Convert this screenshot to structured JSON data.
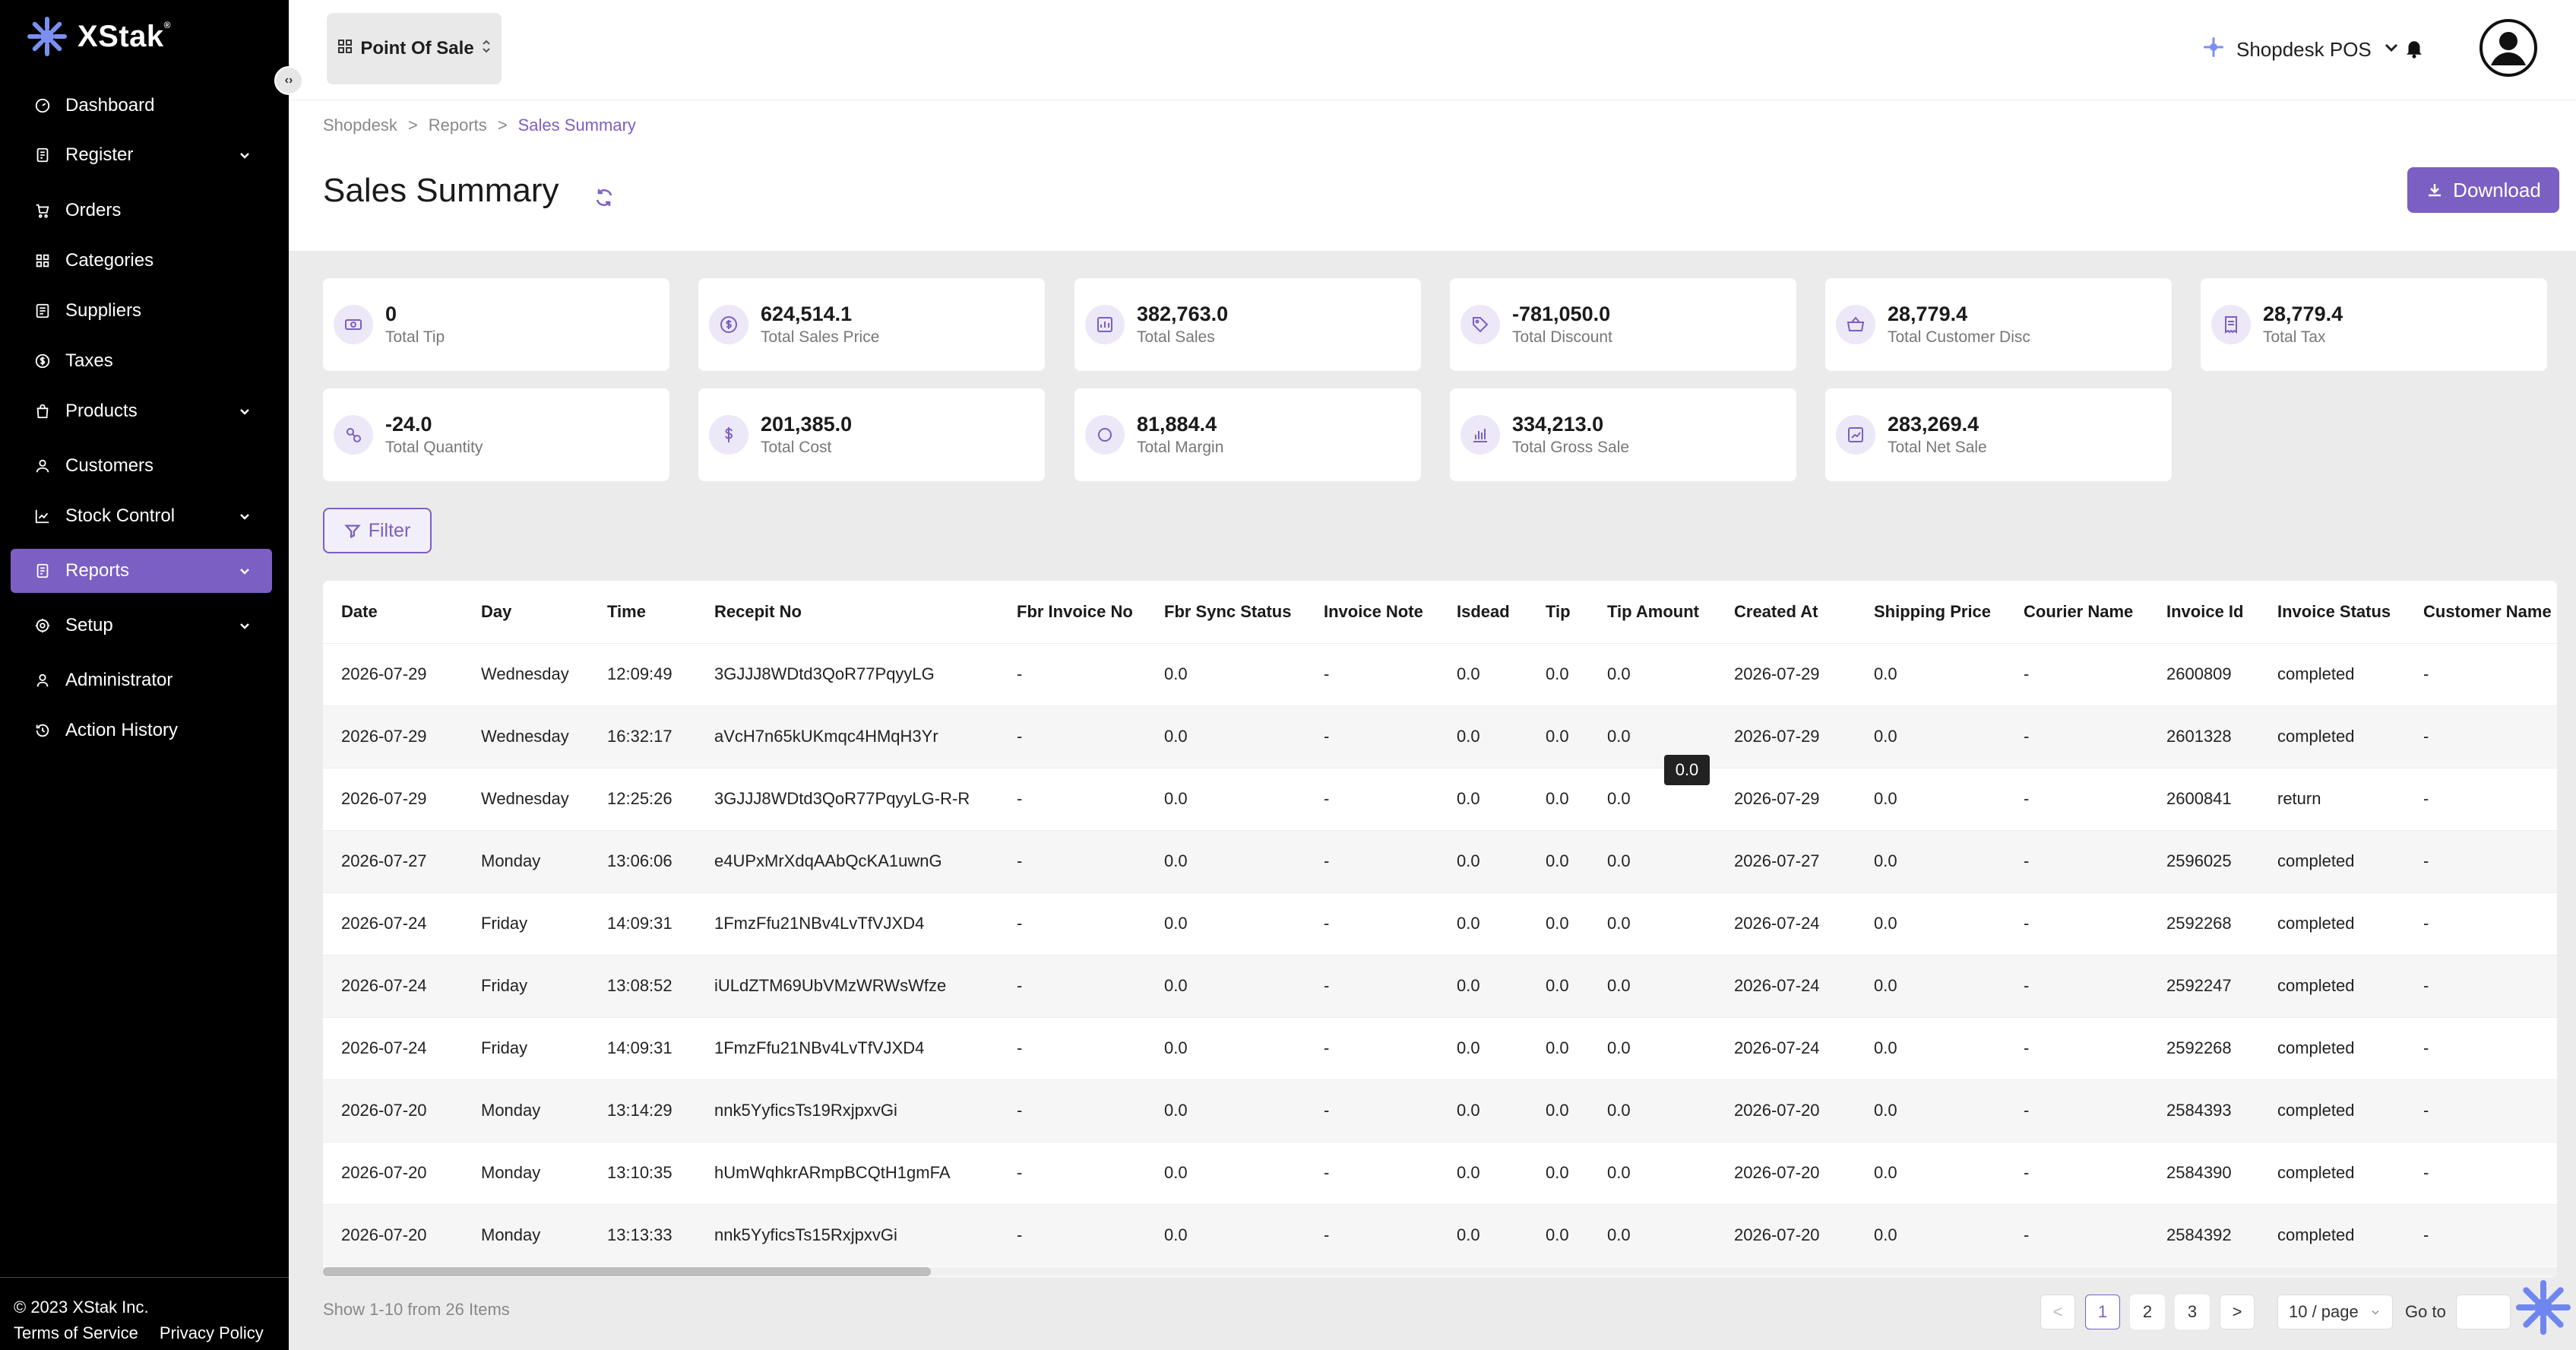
{
  "brand": {
    "name": "XStak",
    "mark": "®"
  },
  "sidebar": {
    "items": [
      {
        "label": "Dashboard",
        "icon": "dashboard-icon"
      },
      {
        "label": "Register",
        "icon": "register-icon"
      },
      {
        "label": "Orders",
        "icon": "cart-icon"
      },
      {
        "label": "Categories",
        "icon": "grid-icon"
      },
      {
        "label": "Suppliers",
        "icon": "supplier-icon"
      },
      {
        "label": "Taxes",
        "icon": "tax-icon"
      },
      {
        "label": "Products",
        "icon": "bag-icon"
      },
      {
        "label": "Customers",
        "icon": "user-icon"
      },
      {
        "label": "Stock Control",
        "icon": "chart-line-icon"
      },
      {
        "label": "Reports",
        "icon": "report-icon"
      },
      {
        "label": "Setup",
        "icon": "gear-icon"
      },
      {
        "label": "Administrator",
        "icon": "admin-icon"
      },
      {
        "label": "Action History",
        "icon": "history-icon"
      }
    ],
    "footer": {
      "copyright": "© 2023 XStak Inc.",
      "terms": "Terms of Service",
      "privacy": "Privacy Policy"
    }
  },
  "topbar": {
    "app_label": "Point Of Sale",
    "store_label": "Shopdesk POS"
  },
  "breadcrumb": [
    "Shopdesk",
    ">",
    "Reports",
    ">",
    "Sales Summary"
  ],
  "page": {
    "title": "Sales Summary",
    "download_label": "Download",
    "filter_label": "Filter"
  },
  "stats": [
    {
      "value": "0",
      "label": "Total Tip",
      "icon": "money-icon"
    },
    {
      "value": "624,514.1",
      "label": "Total Sales Price",
      "icon": "dollar-circle-icon"
    },
    {
      "value": "382,763.0",
      "label": "Total Sales",
      "icon": "sales-icon"
    },
    {
      "value": "-781,050.0",
      "label": "Total Discount",
      "icon": "tag-icon"
    },
    {
      "value": "28,779.4",
      "label": "Total Customer Disc",
      "icon": "basket-icon"
    },
    {
      "value": "28,779.4",
      "label": "Total Tax",
      "icon": "receipt-icon"
    },
    {
      "value": "-24.0",
      "label": "Total Quantity",
      "icon": "quantity-icon"
    },
    {
      "value": "201,385.0",
      "label": "Total Cost",
      "icon": "dollar-icon"
    },
    {
      "value": "81,884.4",
      "label": "Total Margin",
      "icon": "margin-icon"
    },
    {
      "value": "334,213.0",
      "label": "Total Gross Sale",
      "icon": "bar-chart-icon"
    },
    {
      "value": "283,269.4",
      "label": "Total Net Sale",
      "icon": "trend-icon"
    }
  ],
  "table": {
    "columns": [
      "Date",
      "Day",
      "Time",
      "Recepit No",
      "Fbr Invoice No",
      "Fbr Sync Status",
      "Invoice Note",
      "Isdead",
      "Tip",
      "Tip Amount",
      "Created At",
      "Shipping Price",
      "Courier Name",
      "Invoice Id",
      "Invoice Status",
      "Customer Name"
    ],
    "rows": [
      [
        "2026-07-29",
        "Wednesday",
        "12:09:49",
        "3GJJJ8WDtd3QoR77PqyyLG",
        "-",
        "0.0",
        "-",
        "0.0",
        "0.0",
        "0.0",
        "2026-07-29",
        "0.0",
        "-",
        "2600809",
        "completed",
        "-"
      ],
      [
        "2026-07-29",
        "Wednesday",
        "16:32:17",
        "aVcH7n65kUKmqc4HMqH3Yr",
        "-",
        "0.0",
        "-",
        "0.0",
        "0.0",
        "0.0",
        "2026-07-29",
        "0.0",
        "-",
        "2601328",
        "completed",
        "-"
      ],
      [
        "2026-07-29",
        "Wednesday",
        "12:25:26",
        "3GJJJ8WDtd3QoR77PqyyLG-R-R",
        "-",
        "0.0",
        "-",
        "0.0",
        "0.0",
        "0.0",
        "2026-07-29",
        "0.0",
        "-",
        "2600841",
        "return",
        "-"
      ],
      [
        "2026-07-27",
        "Monday",
        "13:06:06",
        "e4UPxMrXdqAAbQcKA1uwnG",
        "-",
        "0.0",
        "-",
        "0.0",
        "0.0",
        "0.0",
        "2026-07-27",
        "0.0",
        "-",
        "2596025",
        "completed",
        "-"
      ],
      [
        "2026-07-24",
        "Friday",
        "14:09:31",
        "1FmzFfu21NBv4LvTfVJXD4",
        "-",
        "0.0",
        "-",
        "0.0",
        "0.0",
        "0.0",
        "2026-07-24",
        "0.0",
        "-",
        "2592268",
        "completed",
        "-"
      ],
      [
        "2026-07-24",
        "Friday",
        "13:08:52",
        "iULdZTM69UbVMzWRWsWfze",
        "-",
        "0.0",
        "-",
        "0.0",
        "0.0",
        "0.0",
        "2026-07-24",
        "0.0",
        "-",
        "2592247",
        "completed",
        "-"
      ],
      [
        "2026-07-24",
        "Friday",
        "14:09:31",
        "1FmzFfu21NBv4LvTfVJXD4",
        "-",
        "0.0",
        "-",
        "0.0",
        "0.0",
        "0.0",
        "2026-07-24",
        "0.0",
        "-",
        "2592268",
        "completed",
        "-"
      ],
      [
        "2026-07-20",
        "Monday",
        "13:14:29",
        "nnk5YyficsTs19RxjpxvGi",
        "-",
        "0.0",
        "-",
        "0.0",
        "0.0",
        "0.0",
        "2026-07-20",
        "0.0",
        "-",
        "2584393",
        "completed",
        "-"
      ],
      [
        "2026-07-20",
        "Monday",
        "13:10:35",
        "hUmWqhkrARmpBCQtH1gmFA",
        "-",
        "0.0",
        "-",
        "0.0",
        "0.0",
        "0.0",
        "2026-07-20",
        "0.0",
        "-",
        "2584390",
        "completed",
        "-"
      ],
      [
        "2026-07-20",
        "Monday",
        "13:13:33",
        "nnk5YyficsTs15RxjpxvGi",
        "-",
        "0.0",
        "-",
        "0.0",
        "0.0",
        "0.0",
        "2026-07-20",
        "0.0",
        "-",
        "2584392",
        "completed",
        "-"
      ]
    ],
    "tooltip": "0.0"
  },
  "pagination": {
    "summary": "Show 1-10 from 26 Items",
    "prev": "<",
    "pages": [
      "1",
      "2",
      "3"
    ],
    "next": ">",
    "page_size": "10 / page",
    "goto_label": "Go to"
  },
  "colors": {
    "accent": "#7b5fc2",
    "sidebar_bg": "#000000",
    "active_bg": "#7b5fc2"
  }
}
